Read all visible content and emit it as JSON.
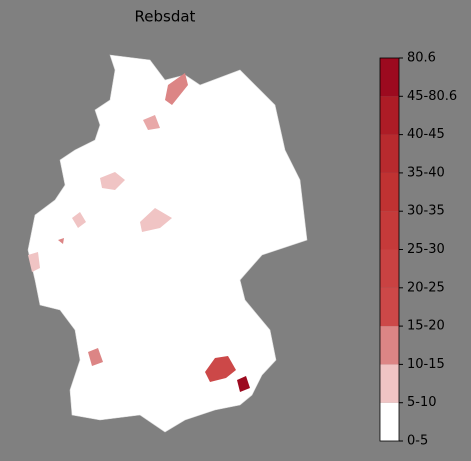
{
  "map": {
    "title": "Rebsdat",
    "legend": {
      "labels": [
        "0-5",
        "5-10",
        "10-15",
        "15-20",
        "20-25",
        "25-30",
        "30-35",
        "35-40",
        "40-45",
        "45-80.6",
        "80.6"
      ],
      "colors": [
        "#ffffff",
        "#f0c4c4",
        "#dc8585",
        "#cc4848",
        "#c94242",
        "#c53a3a",
        "#c03232",
        "#b82a2e",
        "#ad1c26",
        "#9c0a1f"
      ]
    }
  }
}
